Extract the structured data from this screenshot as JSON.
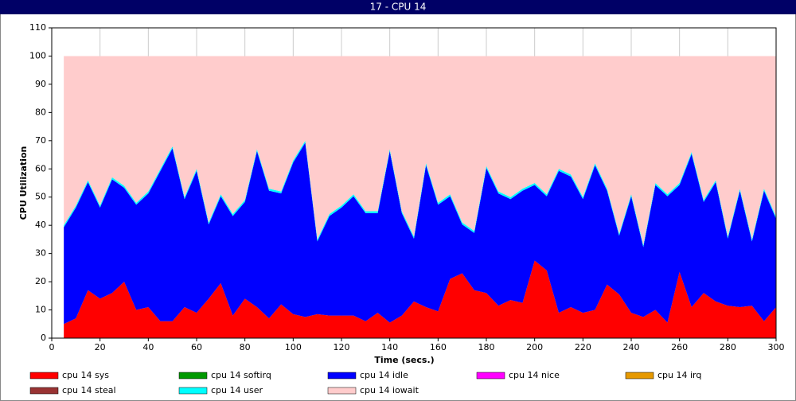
{
  "chart_data": {
    "type": "stacked_area",
    "title": "17 - CPU 14",
    "xlabel": "Time (secs.)",
    "ylabel": "CPU Utilization",
    "xlim": [
      0,
      300
    ],
    "xticks": [
      0,
      20,
      40,
      60,
      80,
      100,
      120,
      140,
      160,
      180,
      200,
      220,
      240,
      260,
      280,
      300
    ],
    "ylim": [
      0,
      110
    ],
    "yticks": [
      0,
      10,
      20,
      30,
      40,
      50,
      60,
      70,
      80,
      90,
      100,
      110
    ],
    "grid": true,
    "x": [
      5,
      10,
      15,
      20,
      25,
      30,
      35,
      40,
      45,
      50,
      55,
      60,
      65,
      70,
      75,
      80,
      85,
      90,
      95,
      100,
      105,
      110,
      115,
      120,
      125,
      130,
      135,
      140,
      145,
      150,
      155,
      160,
      165,
      170,
      175,
      180,
      185,
      190,
      195,
      200,
      205,
      210,
      215,
      220,
      225,
      230,
      235,
      240,
      245,
      250,
      255,
      260,
      265,
      270,
      275,
      280,
      285,
      290,
      295,
      300
    ],
    "series": [
      {
        "name": "cpu 14 sys",
        "color": "#ff0000",
        "values": [
          5,
          7,
          17,
          14,
          16,
          20,
          10,
          11,
          6,
          6,
          11,
          9,
          14,
          19.5,
          8,
          14,
          11,
          7,
          12,
          8.5,
          7.5,
          8.5,
          8,
          8,
          8,
          6,
          9,
          5.5,
          8,
          13,
          11,
          9.5,
          21,
          23,
          17,
          16,
          11.5,
          13.5,
          12.5,
          27.5,
          24,
          9,
          11,
          9,
          10,
          19,
          15.5,
          9,
          7.5,
          10,
          5.5,
          23.5,
          11,
          16,
          13,
          11.5,
          11,
          11.5,
          6,
          11
        ]
      },
      {
        "name": "cpu 14 softirq",
        "color": "#009900",
        "values": [
          0,
          0,
          0,
          0,
          0,
          0,
          0,
          0,
          0,
          0,
          0,
          0,
          0,
          0,
          0,
          0,
          0,
          0,
          0,
          0,
          0,
          0,
          0,
          0,
          0,
          0,
          0,
          0,
          0,
          0,
          0,
          0,
          0,
          0,
          0,
          0,
          0,
          0,
          0,
          0,
          0,
          0,
          0,
          0,
          0,
          0,
          0,
          0,
          0,
          0,
          0,
          0,
          0,
          0,
          0,
          0,
          0,
          0,
          0,
          0
        ]
      },
      {
        "name": "cpu 14 idle",
        "color": "#0000ff",
        "values": [
          34.3,
          39.3,
          38.3,
          32.3,
          40.3,
          33.3,
          37.3,
          40.3,
          53.3,
          61.3,
          38.3,
          50.3,
          26.3,
          30.8,
          35.3,
          34.3,
          55.3,
          45.3,
          39.3,
          53.8,
          61.8,
          25.8,
          35.3,
          38.3,
          42.3,
          38.3,
          35.3,
          60.8,
          36.3,
          22.3,
          50.3,
          37.8,
          29.3,
          17.3,
          20.3,
          44.3,
          39.8,
          35.8,
          39.8,
          26.8,
          26.3,
          50.3,
          46.3,
          40.3,
          51.3,
          33.3,
          20.8,
          41.3,
          24.8,
          44.3,
          44.8,
          30.8,
          54.3,
          32.3,
          42.3,
          23.8,
          41.3,
          22.8,
          46.3,
          31.3
        ]
      },
      {
        "name": "cpu 14 nice",
        "color": "#ff00ff",
        "values": [
          0,
          0,
          0,
          0,
          0,
          0,
          0,
          0,
          0,
          0,
          0,
          0,
          0,
          0,
          0,
          0,
          0,
          0,
          0,
          0,
          0,
          0,
          0,
          0,
          0,
          0,
          0,
          0,
          0,
          0,
          0,
          0,
          0,
          0,
          0,
          0,
          0,
          0,
          0,
          0,
          0,
          0,
          0,
          0,
          0,
          0,
          0,
          0,
          0,
          0,
          0,
          0,
          0,
          0,
          0,
          0,
          0,
          0,
          0,
          0
        ]
      },
      {
        "name": "cpu 14 irq",
        "color": "#e69900",
        "values": [
          0,
          0,
          0,
          0,
          0,
          0,
          0,
          0,
          0,
          0,
          0,
          0,
          0,
          0,
          0,
          0,
          0,
          0,
          0,
          0,
          0,
          0,
          0,
          0,
          0,
          0,
          0,
          0,
          0,
          0,
          0,
          0,
          0,
          0,
          0,
          0,
          0,
          0,
          0,
          0,
          0,
          0,
          0,
          0,
          0,
          0,
          0,
          0,
          0,
          0,
          0,
          0,
          0,
          0,
          0,
          0,
          0,
          0,
          0,
          0
        ]
      },
      {
        "name": "cpu 14 steal",
        "color": "#993333",
        "values": [
          0,
          0,
          0,
          0,
          0,
          0,
          0,
          0,
          0,
          0,
          0,
          0,
          0,
          0,
          0,
          0,
          0,
          0,
          0,
          0,
          0,
          0,
          0,
          0,
          0,
          0,
          0,
          0,
          0,
          0,
          0,
          0,
          0,
          0,
          0,
          0,
          0,
          0,
          0,
          0,
          0,
          0,
          0,
          0,
          0,
          0,
          0,
          0,
          0,
          0,
          0,
          0,
          0,
          0,
          0,
          0,
          0,
          0,
          0,
          0
        ]
      },
      {
        "name": "cpu 14 user",
        "color": "#00ffff",
        "values": [
          0.7,
          0.7,
          0.7,
          0.7,
          0.7,
          0.7,
          0.7,
          0.7,
          0.7,
          0.7,
          0.7,
          0.7,
          0.7,
          0.7,
          0.7,
          0.7,
          0.7,
          0.7,
          0.7,
          0.7,
          0.7,
          0.7,
          0.7,
          0.7,
          0.7,
          0.7,
          0.7,
          0.7,
          0.7,
          0.7,
          0.7,
          0.7,
          0.7,
          0.7,
          0.7,
          0.7,
          0.7,
          0.7,
          0.7,
          0.7,
          0.7,
          0.7,
          0.7,
          0.7,
          0.7,
          0.7,
          0.7,
          0.7,
          0.7,
          0.7,
          0.7,
          0.7,
          0.7,
          0.7,
          0.7,
          0.7,
          0.7,
          0.7,
          0.7,
          0.7
        ]
      },
      {
        "name": "cpu 14 iowait",
        "color": "#ffcccc",
        "values": [
          60,
          53,
          44,
          53,
          43,
          46,
          52,
          48,
          40,
          32,
          50,
          40,
          59,
          49,
          56,
          51,
          33,
          47,
          48,
          37,
          30,
          65,
          56,
          53,
          49,
          55,
          55,
          33,
          55,
          64,
          38,
          52,
          49,
          59,
          62,
          39,
          48,
          50,
          47,
          45,
          49,
          40,
          42,
          50,
          38,
          47,
          63,
          49,
          67,
          45,
          49,
          45,
          34,
          51,
          44,
          64,
          47,
          65,
          47,
          57
        ]
      }
    ]
  }
}
